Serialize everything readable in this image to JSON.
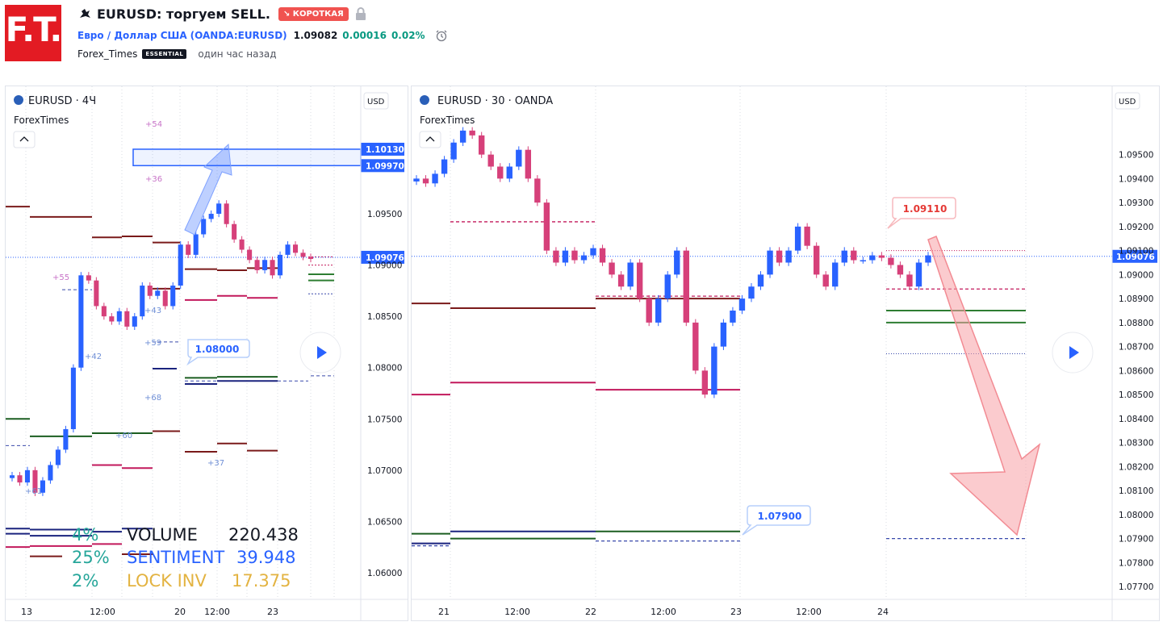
{
  "header": {
    "logo_text": "F.T.",
    "title": "EURUSD: торгуем SELL.",
    "badge": "↘ КОРОТКАЯ",
    "symbol_name": "Евро / Доллар США",
    "symbol_code": "(OANDA:EURUSD)",
    "price": "1.09082",
    "change": "0.00016",
    "change_pct": "0.02%",
    "author": "Forex_Times",
    "author_badge": "ESSENTIAL",
    "time_ago": "один час назад",
    "icons": [
      "bull-icon",
      "lock-icon",
      "clock-alert-icon"
    ],
    "colors": {
      "logo": "#e31b23",
      "badge": "#f05350",
      "link": "#2962ff",
      "up": "#089981"
    }
  },
  "chart_data": [
    {
      "type": "candlestick",
      "title": "EURUSD · 4Ч",
      "subtitle": "ForexTimes",
      "currency": "USD",
      "x_ticks": [
        "13",
        "12:00",
        "20",
        "12:00",
        "23"
      ],
      "y_ticks": [
        "1.09500",
        "1.09000",
        "1.08500",
        "1.08000",
        "1.07500",
        "1.07000",
        "1.06500",
        "1.06000"
      ],
      "ylim": [
        1.0585,
        1.1035
      ],
      "last_price": "1.09076",
      "zone_labels": [
        "1.10130",
        "1.09970"
      ],
      "zone": [
        1.0997,
        1.1013
      ],
      "callout": "1.08000",
      "level_notes": [
        "+54",
        "+36",
        "+55",
        "+43",
        "+42",
        "+59",
        "+68",
        "+60",
        "+37",
        "+61"
      ],
      "close_series": [
        1.0695,
        1.0688,
        1.07,
        1.0678,
        1.069,
        1.0705,
        1.072,
        1.074,
        1.08,
        1.089,
        1.0885,
        1.086,
        1.085,
        1.0845,
        1.0855,
        1.084,
        1.085,
        1.088,
        1.087,
        1.0875,
        1.086,
        1.088,
        1.092,
        1.091,
        1.093,
        1.0945,
        1.095,
        1.096,
        1.094,
        1.0925,
        1.0915,
        1.0905,
        1.0895,
        1.0905,
        1.089,
        1.091,
        1.092,
        1.0912,
        1.0908,
        1.0906
      ],
      "stats": {
        "volume_pct": "4%",
        "volume_label": "VOLUME",
        "volume_value": "220.438",
        "sentiment_pct": "25%",
        "sentiment_label": "SENTIMENT",
        "sentiment_value": "39.948",
        "lock_pct": "2%",
        "lock_label": "LOCK INV",
        "lock_value": "17.375"
      },
      "colors": {
        "up": "#2962ff",
        "down": "#d6407a",
        "stat_pct": "#26a69a",
        "sentiment": "#2962ff",
        "lock": "#e3b341"
      }
    },
    {
      "type": "candlestick",
      "title": "EURUSD · 30 · OANDA",
      "subtitle": "ForexTimes",
      "currency": "USD",
      "x_ticks": [
        "21",
        "12:00",
        "22",
        "12:00",
        "23",
        "12:00",
        "24"
      ],
      "y_ticks": [
        "1.09500",
        "1.09400",
        "1.09300",
        "1.09200",
        "1.09100",
        "1.09000",
        "1.08900",
        "1.08800",
        "1.08700",
        "1.08600",
        "1.08500",
        "1.08400",
        "1.08300",
        "1.08200",
        "1.08100",
        "1.08000",
        "1.07900",
        "1.07800",
        "1.07700"
      ],
      "ylim": [
        1.0765,
        1.0965
      ],
      "last_price": "1.09076",
      "callout_top": "1.09110",
      "callout_bottom": "1.07900",
      "target": 1.079,
      "close_series": [
        1.094,
        1.0938,
        1.0942,
        1.0948,
        1.0955,
        1.096,
        1.0958,
        1.095,
        1.0945,
        1.094,
        1.0945,
        1.0952,
        1.094,
        1.093,
        1.091,
        1.0905,
        1.091,
        1.0906,
        1.0908,
        1.0911,
        1.0905,
        1.09,
        1.0895,
        1.0905,
        1.089,
        1.088,
        1.089,
        1.09,
        1.091,
        1.088,
        1.086,
        1.085,
        1.087,
        1.088,
        1.0885,
        1.089,
        1.0895,
        1.09,
        1.091,
        1.0905,
        1.091,
        1.092,
        1.0912,
        1.09,
        1.0895,
        1.0905,
        1.091,
        1.0906,
        1.0906,
        1.0908,
        1.0907,
        1.0904,
        1.09,
        1.0895,
        1.0905,
        1.0908
      ],
      "colors": {
        "up": "#2962ff",
        "down": "#d6407a",
        "arrow": "#f7a1a6"
      }
    }
  ]
}
